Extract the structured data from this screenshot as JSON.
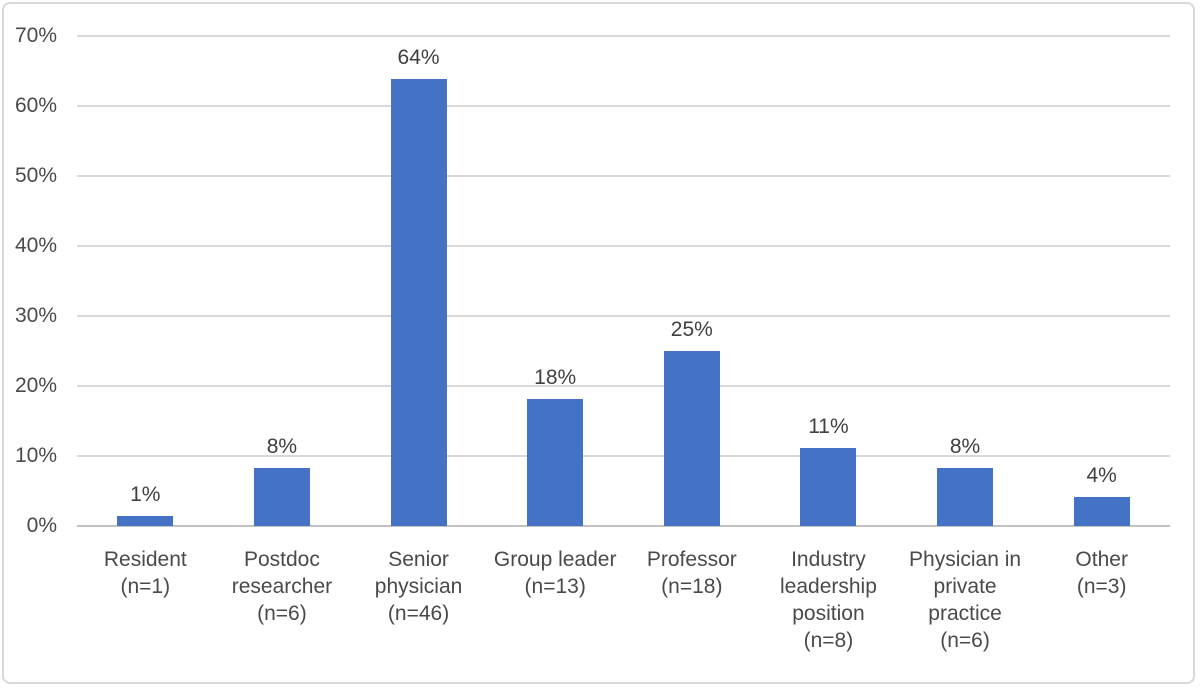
{
  "chart_data": {
    "type": "bar",
    "title": "",
    "xlabel": "",
    "ylabel": "",
    "grid": true,
    "legend": false,
    "categories": [
      "Resident\n(n=1)",
      "Postdoc\nresearcher\n(n=6)",
      "Senior\nphysician\n(n=46)",
      "Group leader\n(n=13)",
      "Professor\n(n=18)",
      "Industry\nleadership\nposition\n(n=8)",
      "Physician in\nprivate\npractice\n(n=6)",
      "Other\n(n=3)"
    ],
    "values_pct": [
      1.4,
      8.3,
      63.9,
      18.1,
      25.0,
      11.1,
      8.3,
      4.2
    ],
    "data_labels": [
      "1%",
      "8%",
      "64%",
      "18%",
      "25%",
      "11%",
      "8%",
      "4%"
    ],
    "y_ticks": [
      "0%",
      "10%",
      "20%",
      "30%",
      "40%",
      "50%",
      "60%",
      "70%"
    ],
    "ylim": [
      0,
      70
    ],
    "colors": {
      "bar": "#4472c4",
      "gridline": "#d9d9d9",
      "axis_line": "#c2c2c2",
      "tick_text": "#4a4a4a",
      "label_text": "#404040",
      "frame_border": "#d8d8d8",
      "background": "#ffffff"
    }
  }
}
